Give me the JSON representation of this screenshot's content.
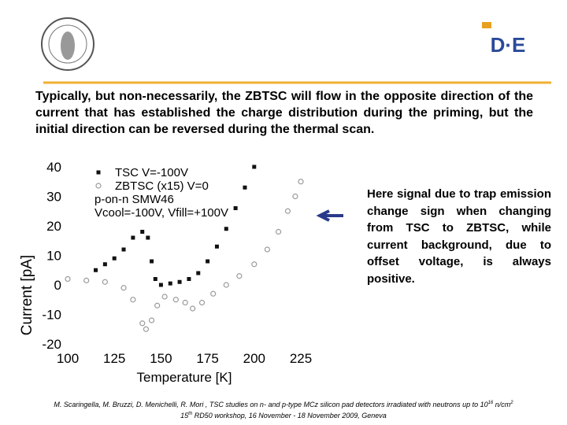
{
  "logo": {
    "text": "D·E"
  },
  "body": "Typically, but non-necessarily, the ZBTSC will flow in the opposite direction of the current that has established the charge distribution during the priming, but the initial direction can be reversed during the thermal scan.",
  "chart_data": {
    "type": "scatter",
    "xlabel": "Temperature [K]",
    "ylabel": "Current [pA]",
    "xlim": [
      100,
      225
    ],
    "xticks": [
      100,
      125,
      150,
      175,
      200,
      225
    ],
    "ylim": [
      -20,
      40
    ],
    "yticks": [
      -20,
      -10,
      0,
      10,
      20,
      30,
      40
    ],
    "legend_notes": [
      "p-on-n SMW46",
      "Vcool=-100V, Vfill=+100V"
    ],
    "series": [
      {
        "name": "TSC  V=-100V",
        "color": "#111111",
        "marker": "square",
        "x": [
          115,
          120,
          125,
          130,
          135,
          140,
          143,
          145,
          147,
          150,
          155,
          160,
          165,
          170,
          175,
          180,
          185,
          190,
          195,
          200
        ],
        "values": [
          5,
          7,
          9,
          12,
          16,
          18,
          16,
          8,
          2,
          0,
          0.5,
          1,
          2,
          4,
          8,
          13,
          19,
          26,
          33,
          40
        ]
      },
      {
        "name": "ZBTSC (x15) V=0",
        "color": "#9a9a9a",
        "marker": "circle",
        "x": [
          100,
          110,
          120,
          130,
          135,
          140,
          142,
          145,
          148,
          152,
          158,
          163,
          167,
          172,
          178,
          185,
          192,
          200,
          207,
          213,
          218,
          222,
          225
        ],
        "values": [
          2,
          1.5,
          1,
          -1,
          -5,
          -13,
          -15,
          -12,
          -7,
          -4,
          -5,
          -6,
          -8,
          -6,
          -3,
          0,
          3,
          7,
          12,
          18,
          25,
          30,
          35
        ]
      }
    ]
  },
  "note": "Here signal due to trap emission change sign when changing from TSC to ZBTSC, while current background, due to offset voltage, is always positive.",
  "footer": {
    "line1": [
      "M. Scaringella, M. Bruzzi, D. Menichelli, R. Mori , TSC studies on n- and p-type MCz silicon pad detectors irradiated with neutrons up to 10",
      "16",
      " n/cm",
      "2"
    ],
    "line2": [
      "15",
      "th",
      " RD50 workshop, 16 November - 18 November 2009, Geneva"
    ]
  }
}
